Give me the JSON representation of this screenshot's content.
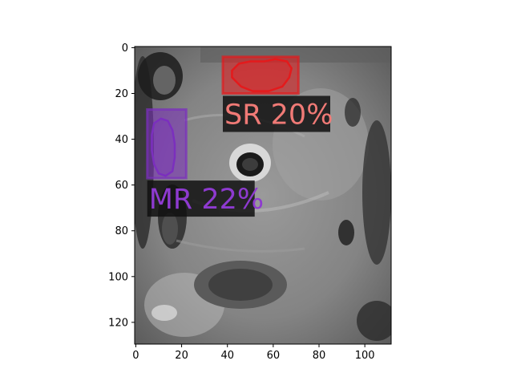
{
  "chart_data": {
    "type": "image",
    "title": "",
    "xlabel": "",
    "ylabel": "",
    "image_width": 112,
    "image_height": 130,
    "xlim": [
      -0.5,
      111.5
    ],
    "ylim": [
      129.5,
      -0.5
    ],
    "x_ticks": [
      0,
      20,
      40,
      60,
      80,
      100
    ],
    "y_ticks": [
      0,
      20,
      40,
      60,
      80,
      100,
      120
    ],
    "image_description": "grayscale MRI axial slice (orbit), gray tissue with dark regions",
    "detections": [
      {
        "label": "SR 20%",
        "color": "#e41a1c",
        "text_color": "#f07a76",
        "box": {
          "x0": 38,
          "y0": 4,
          "x1": 71,
          "y1": 20
        },
        "contour": [
          [
            42,
            10
          ],
          [
            45,
            7
          ],
          [
            50,
            6
          ],
          [
            56,
            6
          ],
          [
            61,
            5
          ],
          [
            66,
            6
          ],
          [
            68,
            9
          ],
          [
            67,
            13
          ],
          [
            64,
            17
          ],
          [
            58,
            19
          ],
          [
            51,
            19
          ],
          [
            46,
            17
          ],
          [
            42,
            13
          ]
        ]
      },
      {
        "label": "MR 22%",
        "color": "#7b2fbe",
        "text_color": "#8e3ad0",
        "box": {
          "x0": 5,
          "y0": 27,
          "x1": 22,
          "y1": 57
        },
        "contour": [
          [
            8,
            33
          ],
          [
            11,
            31
          ],
          [
            14,
            32
          ],
          [
            16,
            36
          ],
          [
            17,
            42
          ],
          [
            17,
            48
          ],
          [
            16,
            54
          ],
          [
            13,
            56
          ],
          [
            10,
            55
          ],
          [
            8,
            51
          ],
          [
            7,
            45
          ],
          [
            7,
            38
          ]
        ]
      }
    ]
  }
}
